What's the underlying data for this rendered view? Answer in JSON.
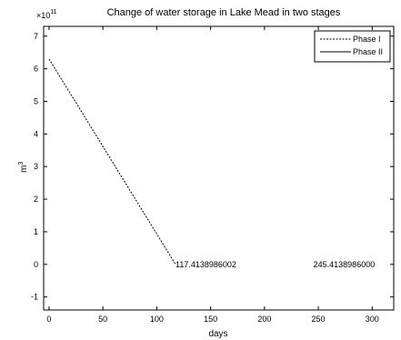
{
  "chart_data": {
    "type": "line",
    "title": "Change of water storage in Lake Mead in two stages",
    "y_exponent": "×10^11",
    "xlabel": "days",
    "ylabel": "m^3",
    "xlim": [
      -5,
      320
    ],
    "ylim": [
      -1.4,
      7.3
    ],
    "xticks": [
      0,
      50,
      100,
      150,
      200,
      250,
      300
    ],
    "yticks": [
      -1,
      0,
      1,
      2,
      3,
      4,
      5,
      6,
      7
    ],
    "series": [
      {
        "name": "Phase I",
        "x": [
          0,
          117.4138986
        ],
        "y": [
          6.3,
          0.0
        ],
        "color": "#000000",
        "dash": "2,1.5"
      },
      {
        "name": "Phase II",
        "x": [],
        "y": [],
        "color": "#000000",
        "dash": ""
      }
    ],
    "annotations": [
      {
        "text": "117.4138986002",
        "x": 117.4138986,
        "y": 0
      },
      {
        "text": "245.4138986000",
        "x": 245.4138986,
        "y": 0
      }
    ],
    "legend": "top-right",
    "grid": false
  }
}
